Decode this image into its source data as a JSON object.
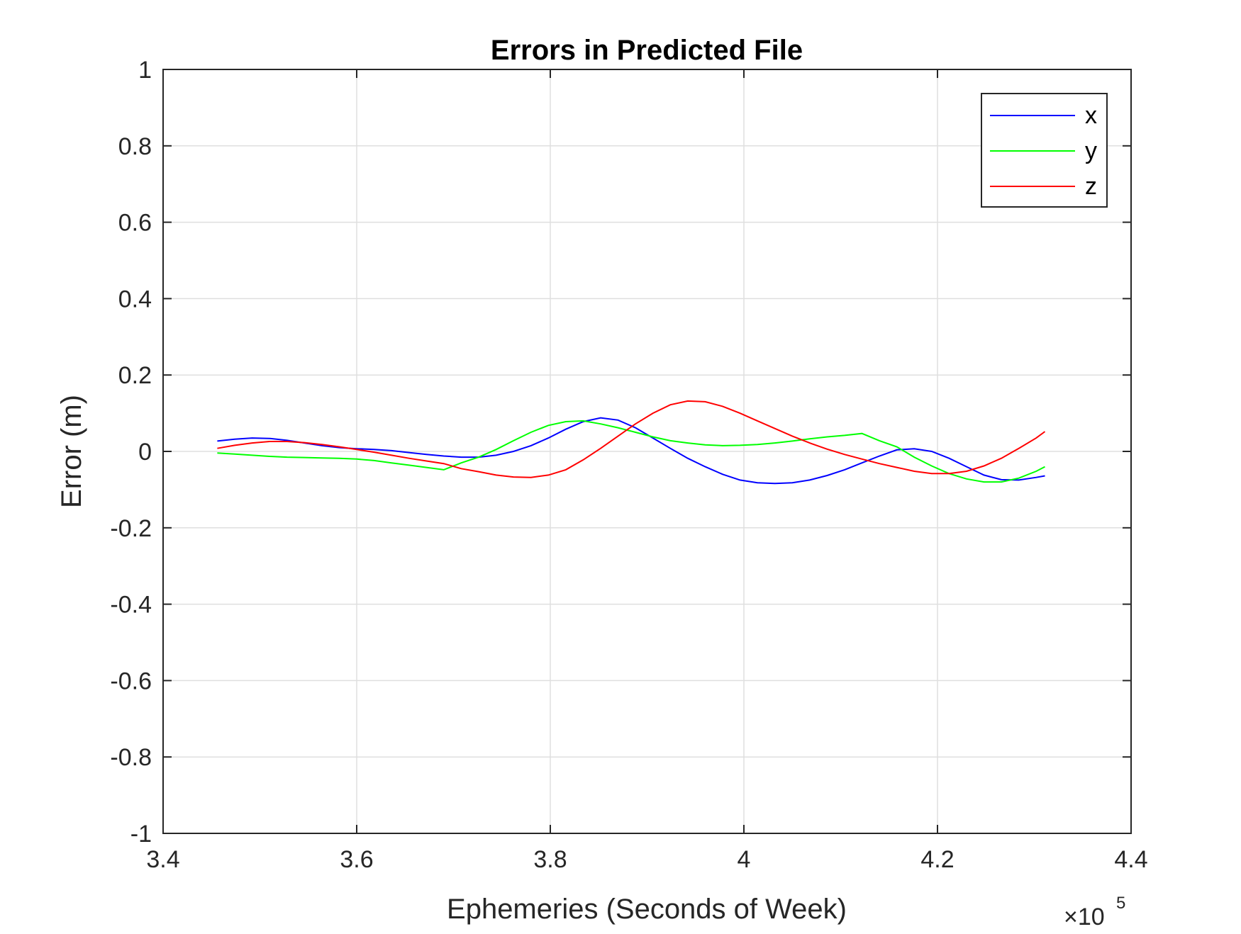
{
  "chart_data": {
    "type": "line",
    "title": "Errors in Predicted File",
    "xlabel": "Ephemeries (Seconds of Week)",
    "ylabel": "Error (m)",
    "x_exponent_label": "×10",
    "x_exponent_power": "5",
    "xlim": [
      340000,
      440000
    ],
    "ylim": [
      -1,
      1
    ],
    "xticks": [
      340000,
      360000,
      380000,
      400000,
      420000,
      440000
    ],
    "xtick_labels": [
      "3.4",
      "3.6",
      "3.8",
      "4",
      "4.2",
      "4.4"
    ],
    "yticks": [
      -1,
      -0.8,
      -0.6,
      -0.4,
      -0.2,
      0,
      0.2,
      0.4,
      0.6,
      0.8,
      1
    ],
    "ytick_labels": [
      "-1",
      "-0.8",
      "-0.6",
      "-0.4",
      "-0.2",
      "0",
      "0.2",
      "0.4",
      "0.6",
      "0.8",
      "1"
    ],
    "grid": true,
    "legend_position": "top-right",
    "x": [
      345600,
      347400,
      349200,
      351000,
      352800,
      354600,
      356400,
      358200,
      360000,
      361800,
      363600,
      365400,
      367200,
      369000,
      370800,
      372600,
      374400,
      376200,
      378000,
      379800,
      381600,
      383400,
      385200,
      387000,
      388800,
      390600,
      392400,
      394200,
      396000,
      397800,
      399600,
      401400,
      403200,
      405000,
      406800,
      408600,
      410400,
      412200,
      414000,
      415800,
      417600,
      419400,
      421200,
      423000,
      424800,
      426600,
      428400,
      430200,
      431100
    ],
    "series": [
      {
        "name": "x",
        "color": "#0000ff",
        "values": [
          0.027,
          0.032,
          0.035,
          0.034,
          0.029,
          0.022,
          0.015,
          0.01,
          0.007,
          0.005,
          0.002,
          -0.003,
          -0.008,
          -0.012,
          -0.015,
          -0.015,
          -0.01,
          0.0,
          0.015,
          0.035,
          0.058,
          0.078,
          0.088,
          0.082,
          0.062,
          0.035,
          0.008,
          -0.018,
          -0.04,
          -0.06,
          -0.075,
          -0.082,
          -0.084,
          -0.082,
          -0.075,
          -0.063,
          -0.048,
          -0.03,
          -0.012,
          0.004,
          0.007,
          0.0,
          -0.018,
          -0.04,
          -0.062,
          -0.074,
          -0.075,
          -0.068,
          -0.064
        ]
      },
      {
        "name": "y",
        "color": "#00ff00",
        "values": [
          -0.004,
          -0.007,
          -0.01,
          -0.013,
          -0.015,
          -0.016,
          -0.017,
          -0.018,
          -0.02,
          -0.024,
          -0.03,
          -0.036,
          -0.042,
          -0.048,
          -0.03,
          -0.015,
          0.005,
          0.028,
          0.05,
          0.068,
          0.078,
          0.08,
          0.072,
          0.062,
          0.05,
          0.038,
          0.028,
          0.022,
          0.017,
          0.015,
          0.016,
          0.018,
          0.022,
          0.027,
          0.033,
          0.038,
          0.042,
          0.047,
          0.028,
          0.012,
          -0.015,
          -0.038,
          -0.058,
          -0.072,
          -0.08,
          -0.08,
          -0.07,
          -0.052,
          -0.04
        ]
      },
      {
        "name": "z",
        "color": "#ff0000",
        "values": [
          0.008,
          0.016,
          0.022,
          0.026,
          0.026,
          0.023,
          0.018,
          0.012,
          0.005,
          -0.002,
          -0.01,
          -0.018,
          -0.025,
          -0.032,
          -0.045,
          -0.053,
          -0.062,
          -0.067,
          -0.068,
          -0.062,
          -0.048,
          -0.022,
          0.008,
          0.04,
          0.072,
          0.1,
          0.122,
          0.132,
          0.13,
          0.118,
          0.1,
          0.08,
          0.06,
          0.04,
          0.022,
          0.006,
          -0.008,
          -0.02,
          -0.032,
          -0.042,
          -0.052,
          -0.058,
          -0.058,
          -0.052,
          -0.038,
          -0.018,
          0.008,
          0.035,
          0.052
        ]
      }
    ]
  }
}
